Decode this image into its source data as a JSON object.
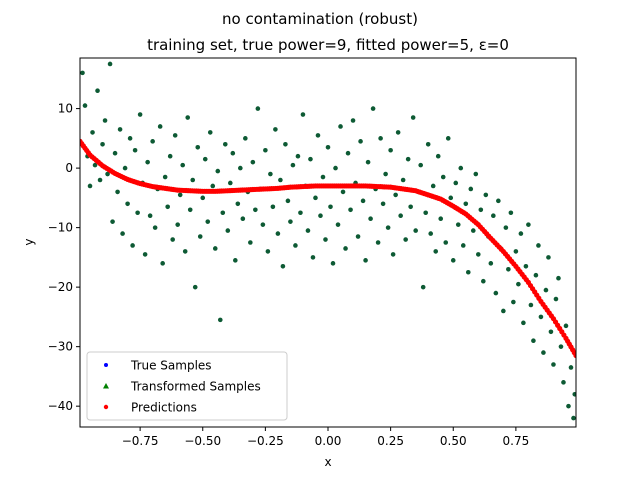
{
  "chart_data": {
    "type": "scatter",
    "title": "no contamination (robust)",
    "subtitle": "training set, true power=9, fitted power=5, ε=0",
    "xlabel": "x",
    "ylabel": "y",
    "xlim": [
      -0.99,
      0.99
    ],
    "ylim": [
      -43.5,
      18.5
    ],
    "x_ticks": [
      -0.75,
      -0.5,
      -0.25,
      0.0,
      0.25,
      0.5,
      0.75
    ],
    "x_tick_labels": [
      "−0.75",
      "−0.50",
      "−0.25",
      "0.00",
      "0.25",
      "0.50",
      "0.75"
    ],
    "y_ticks": [
      -40,
      -30,
      -20,
      -10,
      0,
      10
    ],
    "y_tick_labels": [
      "−40",
      "−30",
      "−20",
      "−10",
      "0",
      "10"
    ],
    "grid": false,
    "legend_position": "lower-left",
    "series": [
      {
        "name": "True Samples",
        "marker": "circle",
        "color": "#0000ff"
      },
      {
        "name": "Transformed Samples",
        "marker": "triangle",
        "color": "#008000"
      },
      {
        "name": "Predictions",
        "marker": "circle",
        "color": "#ff0000"
      }
    ],
    "samples_color": "#0d5a34",
    "fitted_polynomial": {
      "degree": 5,
      "coefficients": [
        -3.0,
        0.0,
        0.0,
        -5.7,
        0.0,
        -21.5
      ]
    },
    "prediction_points": [
      {
        "x": -0.99,
        "y": 4.5
      },
      {
        "x": -0.95,
        "y": 2.2
      },
      {
        "x": -0.9,
        "y": 0.4
      },
      {
        "x": -0.85,
        "y": -0.9
      },
      {
        "x": -0.8,
        "y": -1.9
      },
      {
        "x": -0.75,
        "y": -2.6
      },
      {
        "x": -0.7,
        "y": -3.1
      },
      {
        "x": -0.65,
        "y": -3.4
      },
      {
        "x": -0.6,
        "y": -3.7
      },
      {
        "x": -0.55,
        "y": -3.8
      },
      {
        "x": -0.5,
        "y": -3.9
      },
      {
        "x": -0.45,
        "y": -3.9
      },
      {
        "x": -0.4,
        "y": -3.8
      },
      {
        "x": -0.35,
        "y": -3.7
      },
      {
        "x": -0.3,
        "y": -3.6
      },
      {
        "x": -0.25,
        "y": -3.5
      },
      {
        "x": -0.2,
        "y": -3.4
      },
      {
        "x": -0.15,
        "y": -3.2
      },
      {
        "x": -0.1,
        "y": -3.1
      },
      {
        "x": -0.05,
        "y": -3.0
      },
      {
        "x": 0.0,
        "y": -3.0
      },
      {
        "x": 0.05,
        "y": -3.0
      },
      {
        "x": 0.1,
        "y": -3.0
      },
      {
        "x": 0.15,
        "y": -3.0
      },
      {
        "x": 0.2,
        "y": -3.1
      },
      {
        "x": 0.25,
        "y": -3.2
      },
      {
        "x": 0.3,
        "y": -3.5
      },
      {
        "x": 0.35,
        "y": -3.8
      },
      {
        "x": 0.4,
        "y": -4.5
      },
      {
        "x": 0.45,
        "y": -5.2
      },
      {
        "x": 0.5,
        "y": -6.4
      },
      {
        "x": 0.55,
        "y": -7.7
      },
      {
        "x": 0.6,
        "y": -9.5
      },
      {
        "x": 0.65,
        "y": -11.8
      },
      {
        "x": 0.7,
        "y": -14.0
      },
      {
        "x": 0.75,
        "y": -16.5
      },
      {
        "x": 0.8,
        "y": -19.2
      },
      {
        "x": 0.85,
        "y": -22.4
      },
      {
        "x": 0.9,
        "y": -25.3
      },
      {
        "x": 0.95,
        "y": -28.6
      },
      {
        "x": 0.99,
        "y": -31.5
      }
    ],
    "sample_points": [
      {
        "x": -0.98,
        "y": 16.0
      },
      {
        "x": -0.97,
        "y": 10.5
      },
      {
        "x": -0.96,
        "y": 2.0
      },
      {
        "x": -0.95,
        "y": -3.0
      },
      {
        "x": -0.94,
        "y": 6.0
      },
      {
        "x": -0.93,
        "y": 0.5
      },
      {
        "x": -0.92,
        "y": 13.0
      },
      {
        "x": -0.91,
        "y": -2.0
      },
      {
        "x": -0.9,
        "y": 4.0
      },
      {
        "x": -0.89,
        "y": 8.0
      },
      {
        "x": -0.88,
        "y": -1.0
      },
      {
        "x": -0.87,
        "y": 17.5
      },
      {
        "x": -0.86,
        "y": -9.0
      },
      {
        "x": -0.85,
        "y": 2.5
      },
      {
        "x": -0.84,
        "y": -4.0
      },
      {
        "x": -0.83,
        "y": 6.5
      },
      {
        "x": -0.82,
        "y": -11.0
      },
      {
        "x": -0.81,
        "y": 0.0
      },
      {
        "x": -0.8,
        "y": -6.0
      },
      {
        "x": -0.79,
        "y": 5.0
      },
      {
        "x": -0.78,
        "y": -13.0
      },
      {
        "x": -0.77,
        "y": 3.0
      },
      {
        "x": -0.76,
        "y": -7.5
      },
      {
        "x": -0.75,
        "y": 9.0
      },
      {
        "x": -0.74,
        "y": -2.5
      },
      {
        "x": -0.73,
        "y": -14.5
      },
      {
        "x": -0.72,
        "y": 1.0
      },
      {
        "x": -0.71,
        "y": -8.0
      },
      {
        "x": -0.7,
        "y": 4.5
      },
      {
        "x": -0.69,
        "y": -10.0
      },
      {
        "x": -0.68,
        "y": -3.5
      },
      {
        "x": -0.67,
        "y": 7.0
      },
      {
        "x": -0.66,
        "y": -16.0
      },
      {
        "x": -0.65,
        "y": -1.5
      },
      {
        "x": -0.64,
        "y": -6.5
      },
      {
        "x": -0.63,
        "y": 2.0
      },
      {
        "x": -0.62,
        "y": -12.0
      },
      {
        "x": -0.61,
        "y": 5.5
      },
      {
        "x": -0.6,
        "y": -9.5
      },
      {
        "x": -0.59,
        "y": -4.5
      },
      {
        "x": -0.58,
        "y": 0.5
      },
      {
        "x": -0.57,
        "y": -14.0
      },
      {
        "x": -0.56,
        "y": 8.5
      },
      {
        "x": -0.55,
        "y": -7.0
      },
      {
        "x": -0.54,
        "y": -2.0
      },
      {
        "x": -0.53,
        "y": -20.0
      },
      {
        "x": -0.52,
        "y": 3.5
      },
      {
        "x": -0.51,
        "y": -11.5
      },
      {
        "x": -0.5,
        "y": -5.0
      },
      {
        "x": -0.49,
        "y": 1.5
      },
      {
        "x": -0.48,
        "y": -9.0
      },
      {
        "x": -0.47,
        "y": 6.0
      },
      {
        "x": -0.46,
        "y": -3.0
      },
      {
        "x": -0.45,
        "y": -13.5
      },
      {
        "x": -0.44,
        "y": -0.5
      },
      {
        "x": -0.43,
        "y": -25.5
      },
      {
        "x": -0.42,
        "y": -7.5
      },
      {
        "x": -0.41,
        "y": 4.0
      },
      {
        "x": -0.4,
        "y": -10.5
      },
      {
        "x": -0.39,
        "y": -2.5
      },
      {
        "x": -0.38,
        "y": 2.5
      },
      {
        "x": -0.37,
        "y": -15.5
      },
      {
        "x": -0.36,
        "y": -6.0
      },
      {
        "x": -0.35,
        "y": 0.0
      },
      {
        "x": -0.34,
        "y": -8.5
      },
      {
        "x": -0.33,
        "y": 5.0
      },
      {
        "x": -0.32,
        "y": -4.0
      },
      {
        "x": -0.31,
        "y": -12.5
      },
      {
        "x": -0.3,
        "y": 1.0
      },
      {
        "x": -0.29,
        "y": -7.0
      },
      {
        "x": -0.28,
        "y": 10.0
      },
      {
        "x": -0.27,
        "y": -3.5
      },
      {
        "x": -0.26,
        "y": -9.5
      },
      {
        "x": -0.25,
        "y": 3.0
      },
      {
        "x": -0.24,
        "y": -14.0
      },
      {
        "x": -0.23,
        "y": -1.0
      },
      {
        "x": -0.22,
        "y": -6.5
      },
      {
        "x": -0.21,
        "y": 6.5
      },
      {
        "x": -0.2,
        "y": -11.0
      },
      {
        "x": -0.19,
        "y": -2.0
      },
      {
        "x": -0.18,
        "y": -16.5
      },
      {
        "x": -0.17,
        "y": 4.0
      },
      {
        "x": -0.16,
        "y": -5.5
      },
      {
        "x": -0.15,
        "y": -9.0
      },
      {
        "x": -0.14,
        "y": 0.5
      },
      {
        "x": -0.13,
        "y": -13.0
      },
      {
        "x": -0.12,
        "y": 2.0
      },
      {
        "x": -0.11,
        "y": -7.5
      },
      {
        "x": -0.1,
        "y": 9.0
      },
      {
        "x": -0.09,
        "y": -3.0
      },
      {
        "x": -0.08,
        "y": -10.5
      },
      {
        "x": -0.07,
        "y": 1.5
      },
      {
        "x": -0.06,
        "y": -15.0
      },
      {
        "x": -0.05,
        "y": -5.0
      },
      {
        "x": -0.04,
        "y": 5.5
      },
      {
        "x": -0.03,
        "y": -8.0
      },
      {
        "x": -0.02,
        "y": -1.5
      },
      {
        "x": -0.01,
        "y": -12.0
      },
      {
        "x": 0.0,
        "y": 3.5
      },
      {
        "x": 0.01,
        "y": -6.5
      },
      {
        "x": 0.02,
        "y": -16.0
      },
      {
        "x": 0.03,
        "y": 0.0
      },
      {
        "x": 0.04,
        "y": -9.5
      },
      {
        "x": 0.05,
        "y": 7.0
      },
      {
        "x": 0.06,
        "y": -4.0
      },
      {
        "x": 0.07,
        "y": -13.5
      },
      {
        "x": 0.08,
        "y": 2.5
      },
      {
        "x": 0.09,
        "y": -7.0
      },
      {
        "x": 0.1,
        "y": 8.0
      },
      {
        "x": 0.11,
        "y": -2.5
      },
      {
        "x": 0.12,
        "y": -11.5
      },
      {
        "x": 0.13,
        "y": 4.5
      },
      {
        "x": 0.14,
        "y": -5.5
      },
      {
        "x": 0.15,
        "y": -15.5
      },
      {
        "x": 0.16,
        "y": 1.0
      },
      {
        "x": 0.17,
        "y": -8.5
      },
      {
        "x": 0.18,
        "y": 10.0
      },
      {
        "x": 0.19,
        "y": -3.5
      },
      {
        "x": 0.2,
        "y": -12.5
      },
      {
        "x": 0.21,
        "y": 5.0
      },
      {
        "x": 0.22,
        "y": -6.0
      },
      {
        "x": 0.23,
        "y": -1.0
      },
      {
        "x": 0.24,
        "y": -10.0
      },
      {
        "x": 0.25,
        "y": 3.0
      },
      {
        "x": 0.26,
        "y": -14.5
      },
      {
        "x": 0.27,
        "y": -4.5
      },
      {
        "x": 0.28,
        "y": 6.0
      },
      {
        "x": 0.29,
        "y": -8.0
      },
      {
        "x": 0.3,
        "y": -2.0
      },
      {
        "x": 0.31,
        "y": -12.0
      },
      {
        "x": 0.32,
        "y": 1.5
      },
      {
        "x": 0.33,
        "y": -6.5
      },
      {
        "x": 0.34,
        "y": 8.5
      },
      {
        "x": 0.35,
        "y": -10.5
      },
      {
        "x": 0.36,
        "y": -4.0
      },
      {
        "x": 0.37,
        "y": 0.5
      },
      {
        "x": 0.38,
        "y": -20.0
      },
      {
        "x": 0.39,
        "y": -7.5
      },
      {
        "x": 0.4,
        "y": 4.0
      },
      {
        "x": 0.41,
        "y": -11.0
      },
      {
        "x": 0.42,
        "y": -3.0
      },
      {
        "x": 0.43,
        "y": -14.0
      },
      {
        "x": 0.44,
        "y": 2.0
      },
      {
        "x": 0.45,
        "y": -8.5
      },
      {
        "x": 0.46,
        "y": -1.5
      },
      {
        "x": 0.47,
        "y": -12.5
      },
      {
        "x": 0.48,
        "y": 5.0
      },
      {
        "x": 0.49,
        "y": -5.0
      },
      {
        "x": 0.5,
        "y": -15.5
      },
      {
        "x": 0.51,
        "y": -2.5
      },
      {
        "x": 0.52,
        "y": -9.5
      },
      {
        "x": 0.53,
        "y": 0.0
      },
      {
        "x": 0.54,
        "y": -13.0
      },
      {
        "x": 0.55,
        "y": -6.0
      },
      {
        "x": 0.56,
        "y": -17.5
      },
      {
        "x": 0.57,
        "y": -3.5
      },
      {
        "x": 0.58,
        "y": -10.5
      },
      {
        "x": 0.59,
        "y": -1.0
      },
      {
        "x": 0.6,
        "y": -14.5
      },
      {
        "x": 0.61,
        "y": -7.0
      },
      {
        "x": 0.62,
        "y": -19.0
      },
      {
        "x": 0.63,
        "y": -4.5
      },
      {
        "x": 0.64,
        "y": -11.5
      },
      {
        "x": 0.65,
        "y": -16.0
      },
      {
        "x": 0.66,
        "y": -8.0
      },
      {
        "x": 0.67,
        "y": -21.0
      },
      {
        "x": 0.68,
        "y": -5.5
      },
      {
        "x": 0.69,
        "y": -13.5
      },
      {
        "x": 0.7,
        "y": -24.0
      },
      {
        "x": 0.71,
        "y": -10.0
      },
      {
        "x": 0.72,
        "y": -17.0
      },
      {
        "x": 0.73,
        "y": -7.5
      },
      {
        "x": 0.74,
        "y": -22.5
      },
      {
        "x": 0.75,
        "y": -14.0
      },
      {
        "x": 0.76,
        "y": -19.5
      },
      {
        "x": 0.77,
        "y": -11.0
      },
      {
        "x": 0.78,
        "y": -26.0
      },
      {
        "x": 0.79,
        "y": -16.5
      },
      {
        "x": 0.8,
        "y": -9.5
      },
      {
        "x": 0.81,
        "y": -23.0
      },
      {
        "x": 0.82,
        "y": -29.0
      },
      {
        "x": 0.83,
        "y": -18.0
      },
      {
        "x": 0.84,
        "y": -13.0
      },
      {
        "x": 0.85,
        "y": -25.0
      },
      {
        "x": 0.86,
        "y": -31.0
      },
      {
        "x": 0.87,
        "y": -20.5
      },
      {
        "x": 0.88,
        "y": -15.0
      },
      {
        "x": 0.89,
        "y": -27.5
      },
      {
        "x": 0.9,
        "y": -33.0
      },
      {
        "x": 0.91,
        "y": -22.0
      },
      {
        "x": 0.92,
        "y": -18.5
      },
      {
        "x": 0.93,
        "y": -30.0
      },
      {
        "x": 0.94,
        "y": -36.0
      },
      {
        "x": 0.95,
        "y": -26.5
      },
      {
        "x": 0.96,
        "y": -40.0
      },
      {
        "x": 0.97,
        "y": -33.5
      },
      {
        "x": 0.98,
        "y": -42.0
      },
      {
        "x": 0.985,
        "y": -38.0
      }
    ]
  }
}
